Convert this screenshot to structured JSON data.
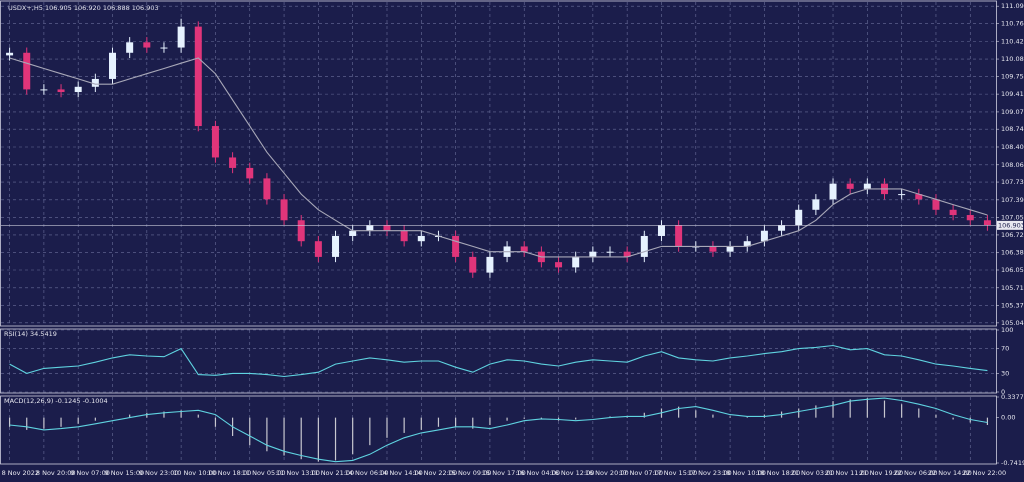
{
  "chart_data": [
    {
      "type": "candlestick",
      "title": "USDX+,H5 106.905 106.920 106.888 106.903",
      "categories": [
        "8 Nov 2022",
        null,
        "8 Nov 20:00",
        null,
        "9 Nov 07:00",
        null,
        "9 Nov 15:00",
        null,
        "9 Nov 23:00",
        null,
        "10 Nov 10:00",
        null,
        "10 Nov 18:00",
        null,
        "11 Nov 05:00",
        null,
        "11 Nov 13:00",
        null,
        "11 Nov 21:00",
        null,
        "14 Nov 06:00",
        null,
        "14 Nov 14:00",
        null,
        "14 Nov 22:00",
        null,
        "15 Nov 09:00",
        null,
        "15 Nov 17:00",
        null,
        "16 Nov 04:00",
        null,
        "16 Nov 12:00",
        null,
        "16 Nov 20:00",
        null,
        "17 Nov 07:00",
        null,
        "17 Nov 15:00",
        null,
        "17 Nov 23:00",
        null,
        "18 Nov 10:00",
        null,
        "18 Nov 18:00",
        null,
        "21 Nov 03:00",
        null,
        "21 Nov 11:00",
        null,
        "21 Nov 19:00",
        null,
        "22 Nov 06:00",
        null,
        "22 Nov 14:00",
        null,
        "22 Nov 22:00",
        null
      ],
      "open": [
        110.15,
        110.2,
        109.5,
        109.5,
        109.45,
        109.55,
        109.7,
        110.2,
        110.4,
        110.3,
        110.3,
        110.7,
        108.8,
        108.2,
        108.0,
        107.8,
        107.4,
        107.0,
        106.6,
        106.3,
        106.7,
        106.8,
        106.9,
        106.8,
        106.6,
        106.7,
        106.7,
        106.3,
        106.0,
        106.3,
        106.5,
        106.4,
        106.2,
        106.1,
        106.3,
        106.4,
        106.4,
        106.3,
        106.7,
        106.9,
        106.5,
        106.5,
        106.4,
        106.5,
        106.6,
        106.8,
        106.9,
        107.2,
        107.4,
        107.7,
        107.6,
        107.7,
        107.5,
        107.5,
        107.4,
        107.2,
        107.1,
        107.0
      ],
      "high": [
        110.3,
        110.3,
        109.6,
        109.6,
        109.65,
        109.8,
        110.3,
        110.5,
        110.5,
        110.4,
        110.85,
        110.8,
        108.9,
        108.3,
        108.1,
        107.9,
        107.5,
        107.1,
        106.7,
        106.8,
        106.9,
        107.0,
        107.0,
        106.9,
        106.8,
        106.8,
        106.8,
        106.4,
        106.4,
        106.6,
        106.6,
        106.5,
        106.3,
        106.4,
        106.5,
        106.5,
        106.5,
        106.8,
        107.0,
        107.0,
        106.6,
        106.6,
        106.6,
        106.7,
        106.9,
        107.0,
        107.3,
        107.5,
        107.8,
        107.8,
        107.8,
        107.8,
        107.6,
        107.6,
        107.5,
        107.3,
        107.2,
        107.1
      ],
      "low": [
        110.05,
        109.4,
        109.4,
        109.35,
        109.35,
        109.45,
        109.6,
        110.1,
        110.2,
        110.2,
        110.2,
        108.7,
        108.1,
        107.9,
        107.7,
        107.3,
        106.9,
        106.5,
        106.2,
        106.2,
        106.6,
        106.7,
        106.7,
        106.5,
        106.5,
        106.6,
        106.2,
        105.9,
        105.9,
        106.2,
        106.3,
        106.1,
        106.0,
        106.0,
        106.2,
        106.3,
        106.2,
        106.2,
        106.6,
        106.4,
        106.4,
        106.3,
        106.3,
        106.4,
        106.5,
        106.7,
        106.8,
        107.1,
        107.3,
        107.5,
        107.5,
        107.4,
        107.4,
        107.3,
        107.1,
        107.0,
        106.9,
        106.8
      ],
      "close": [
        110.2,
        109.5,
        109.5,
        109.45,
        109.55,
        109.7,
        110.2,
        110.4,
        110.3,
        110.3,
        110.7,
        108.8,
        108.2,
        108.0,
        107.8,
        107.4,
        107.0,
        106.6,
        106.3,
        106.7,
        106.8,
        106.9,
        106.8,
        106.6,
        106.7,
        106.7,
        106.3,
        106.0,
        106.3,
        106.5,
        106.4,
        106.2,
        106.1,
        106.3,
        106.4,
        106.4,
        106.3,
        106.7,
        106.9,
        106.5,
        106.5,
        106.4,
        106.5,
        106.6,
        106.8,
        106.9,
        107.2,
        107.4,
        107.7,
        107.6,
        107.7,
        107.5,
        107.5,
        107.4,
        107.2,
        107.1,
        107.0,
        106.9
      ],
      "up_color": "#e6f2ff",
      "down_color": "#e0357a",
      "overlay": {
        "color": "#a8a8b8",
        "values": [
          110.1,
          110.0,
          109.9,
          109.8,
          109.7,
          109.6,
          109.6,
          109.7,
          109.8,
          109.9,
          110.0,
          110.1,
          109.8,
          109.3,
          108.8,
          108.3,
          107.9,
          107.5,
          107.2,
          107.0,
          106.8,
          106.8,
          106.8,
          106.8,
          106.8,
          106.7,
          106.6,
          106.5,
          106.4,
          106.4,
          106.4,
          106.3,
          106.3,
          106.3,
          106.3,
          106.3,
          106.3,
          106.4,
          106.5,
          106.5,
          106.5,
          106.5,
          106.5,
          106.5,
          106.6,
          106.7,
          106.8,
          107.0,
          107.3,
          107.5,
          107.6,
          107.6,
          107.6,
          107.5,
          107.4,
          107.3,
          107.2,
          107.1
        ]
      },
      "last_price": 106.903,
      "ylim": [
        104.98,
        111.17
      ],
      "yticks": [
        {
          "value": 105.04,
          "label": "105.040"
        },
        {
          "value": 105.37,
          "label": "105.370"
        },
        {
          "value": 105.71,
          "label": "105.710"
        },
        {
          "value": 106.05,
          "label": "106.050"
        },
        {
          "value": 106.38,
          "label": "106.380"
        },
        {
          "value": 106.72,
          "label": "106.720"
        },
        {
          "value": 107.05,
          "label": "107.050"
        },
        {
          "value": 107.39,
          "label": "107.390"
        },
        {
          "value": 107.73,
          "label": "107.730"
        },
        {
          "value": 108.06,
          "label": "108.060"
        },
        {
          "value": 108.4,
          "label": "108.400"
        },
        {
          "value": 108.74,
          "label": "108.740"
        },
        {
          "value": 109.07,
          "label": "109.070"
        },
        {
          "value": 109.41,
          "label": "109.410"
        },
        {
          "value": 109.75,
          "label": "109.750"
        },
        {
          "value": 110.08,
          "label": "110.080"
        },
        {
          "value": 110.42,
          "label": "110.420"
        },
        {
          "value": 110.76,
          "label": "110.760"
        },
        {
          "value": 111.09,
          "label": "111.090"
        }
      ],
      "grid": true
    },
    {
      "type": "line",
      "title": "RSI(14) 34.5419",
      "color": "#5fd3e0",
      "values": [
        45,
        30,
        38,
        40,
        42,
        48,
        55,
        60,
        58,
        57,
        70,
        28,
        27,
        30,
        30,
        28,
        25,
        28,
        32,
        45,
        50,
        55,
        52,
        48,
        50,
        50,
        40,
        32,
        45,
        52,
        50,
        45,
        42,
        48,
        52,
        50,
        48,
        58,
        65,
        55,
        52,
        50,
        55,
        58,
        62,
        65,
        70,
        72,
        75,
        68,
        70,
        60,
        58,
        52,
        45,
        42,
        38,
        34.54
      ],
      "ylim": [
        0,
        100
      ],
      "yticks": [
        100,
        70,
        30,
        0
      ],
      "grid": true
    },
    {
      "type": "macd",
      "title": "MACD(12,26,9) -0.1245 -0.1004",
      "histogram": {
        "color": "#c8c8d0",
        "values": [
          -0.15,
          -0.2,
          -0.18,
          -0.15,
          -0.1,
          -0.05,
          0.0,
          0.05,
          0.08,
          0.1,
          0.12,
          0.05,
          -0.15,
          -0.3,
          -0.45,
          -0.55,
          -0.62,
          -0.68,
          -0.72,
          -0.7,
          -0.6,
          -0.45,
          -0.33,
          -0.25,
          -0.2,
          -0.15,
          -0.15,
          -0.18,
          -0.12,
          -0.05,
          -0.02,
          -0.03,
          -0.05,
          -0.03,
          0.0,
          0.02,
          0.02,
          0.08,
          0.15,
          0.18,
          0.12,
          0.05,
          0.02,
          0.02,
          0.05,
          0.1,
          0.15,
          0.2,
          0.27,
          0.3,
          0.32,
          0.28,
          0.22,
          0.15,
          0.05,
          -0.03,
          -0.08,
          -0.12
        ]
      },
      "signal": {
        "color": "#5fd3e0",
        "values": [
          -0.12,
          -0.15,
          -0.2,
          -0.18,
          -0.15,
          -0.1,
          -0.05,
          0.0,
          0.05,
          0.08,
          0.1,
          0.12,
          0.05,
          -0.15,
          -0.3,
          -0.45,
          -0.55,
          -0.62,
          -0.68,
          -0.72,
          -0.7,
          -0.6,
          -0.45,
          -0.33,
          -0.25,
          -0.2,
          -0.15,
          -0.15,
          -0.18,
          -0.12,
          -0.05,
          -0.02,
          -0.03,
          -0.05,
          -0.03,
          0.0,
          0.02,
          0.02,
          0.08,
          0.15,
          0.18,
          0.12,
          0.05,
          0.02,
          0.02,
          0.05,
          0.1,
          0.15,
          0.2,
          0.27,
          0.3,
          0.32,
          0.28,
          0.22,
          0.15,
          0.05,
          -0.03,
          -0.08
        ]
      },
      "ylim": [
        -0.7419,
        0.3377
      ],
      "yticks": [
        0.3377,
        {
          "value": 0,
          "label": "0.00"
        },
        -0.7419
      ],
      "grid": false
    }
  ]
}
